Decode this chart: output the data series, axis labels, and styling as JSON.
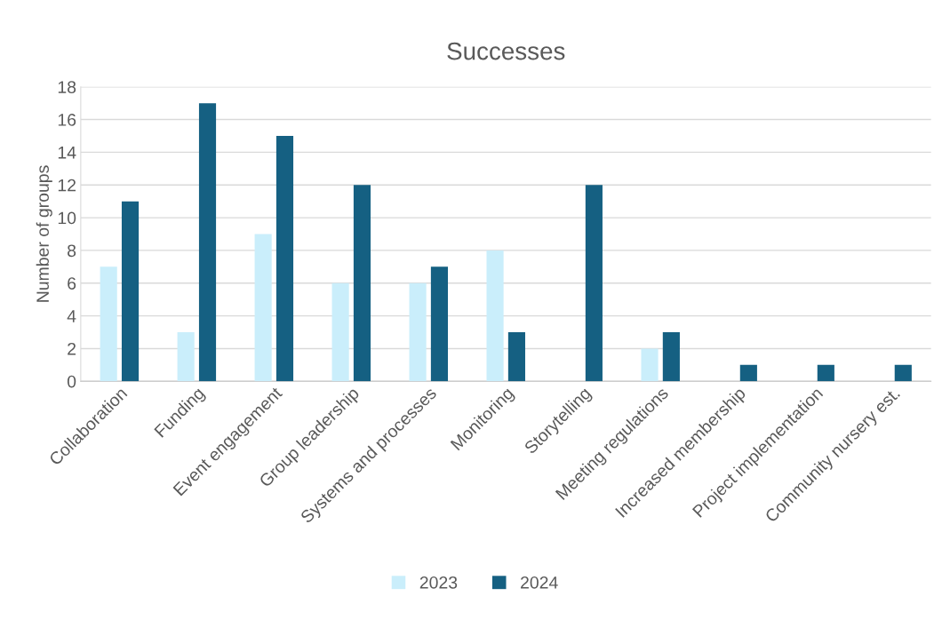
{
  "chart_data": {
    "type": "bar",
    "title": "Successes",
    "ylabel": "Number of groups",
    "categories": [
      "Collaboration",
      "Funding",
      "Event engagement",
      "Group leadership",
      "Systems and processes",
      "Monitoring",
      "Storytelling",
      "Meeting regulations",
      "Increased membership",
      "Project implementation",
      "Community nursery est."
    ],
    "series": [
      {
        "name": "2023",
        "color": "#caeefb",
        "values": [
          7,
          3,
          9,
          6,
          6,
          8,
          0,
          2,
          0,
          0,
          0
        ]
      },
      {
        "name": "2024",
        "color": "#156082",
        "values": [
          11,
          17,
          15,
          12,
          7,
          3,
          12,
          3,
          1,
          1,
          1
        ]
      }
    ],
    "ylim": [
      0,
      18
    ],
    "yticks": [
      0,
      2,
      4,
      6,
      8,
      10,
      12,
      14,
      16,
      18
    ],
    "grid": "y",
    "legend": "bottom"
  }
}
